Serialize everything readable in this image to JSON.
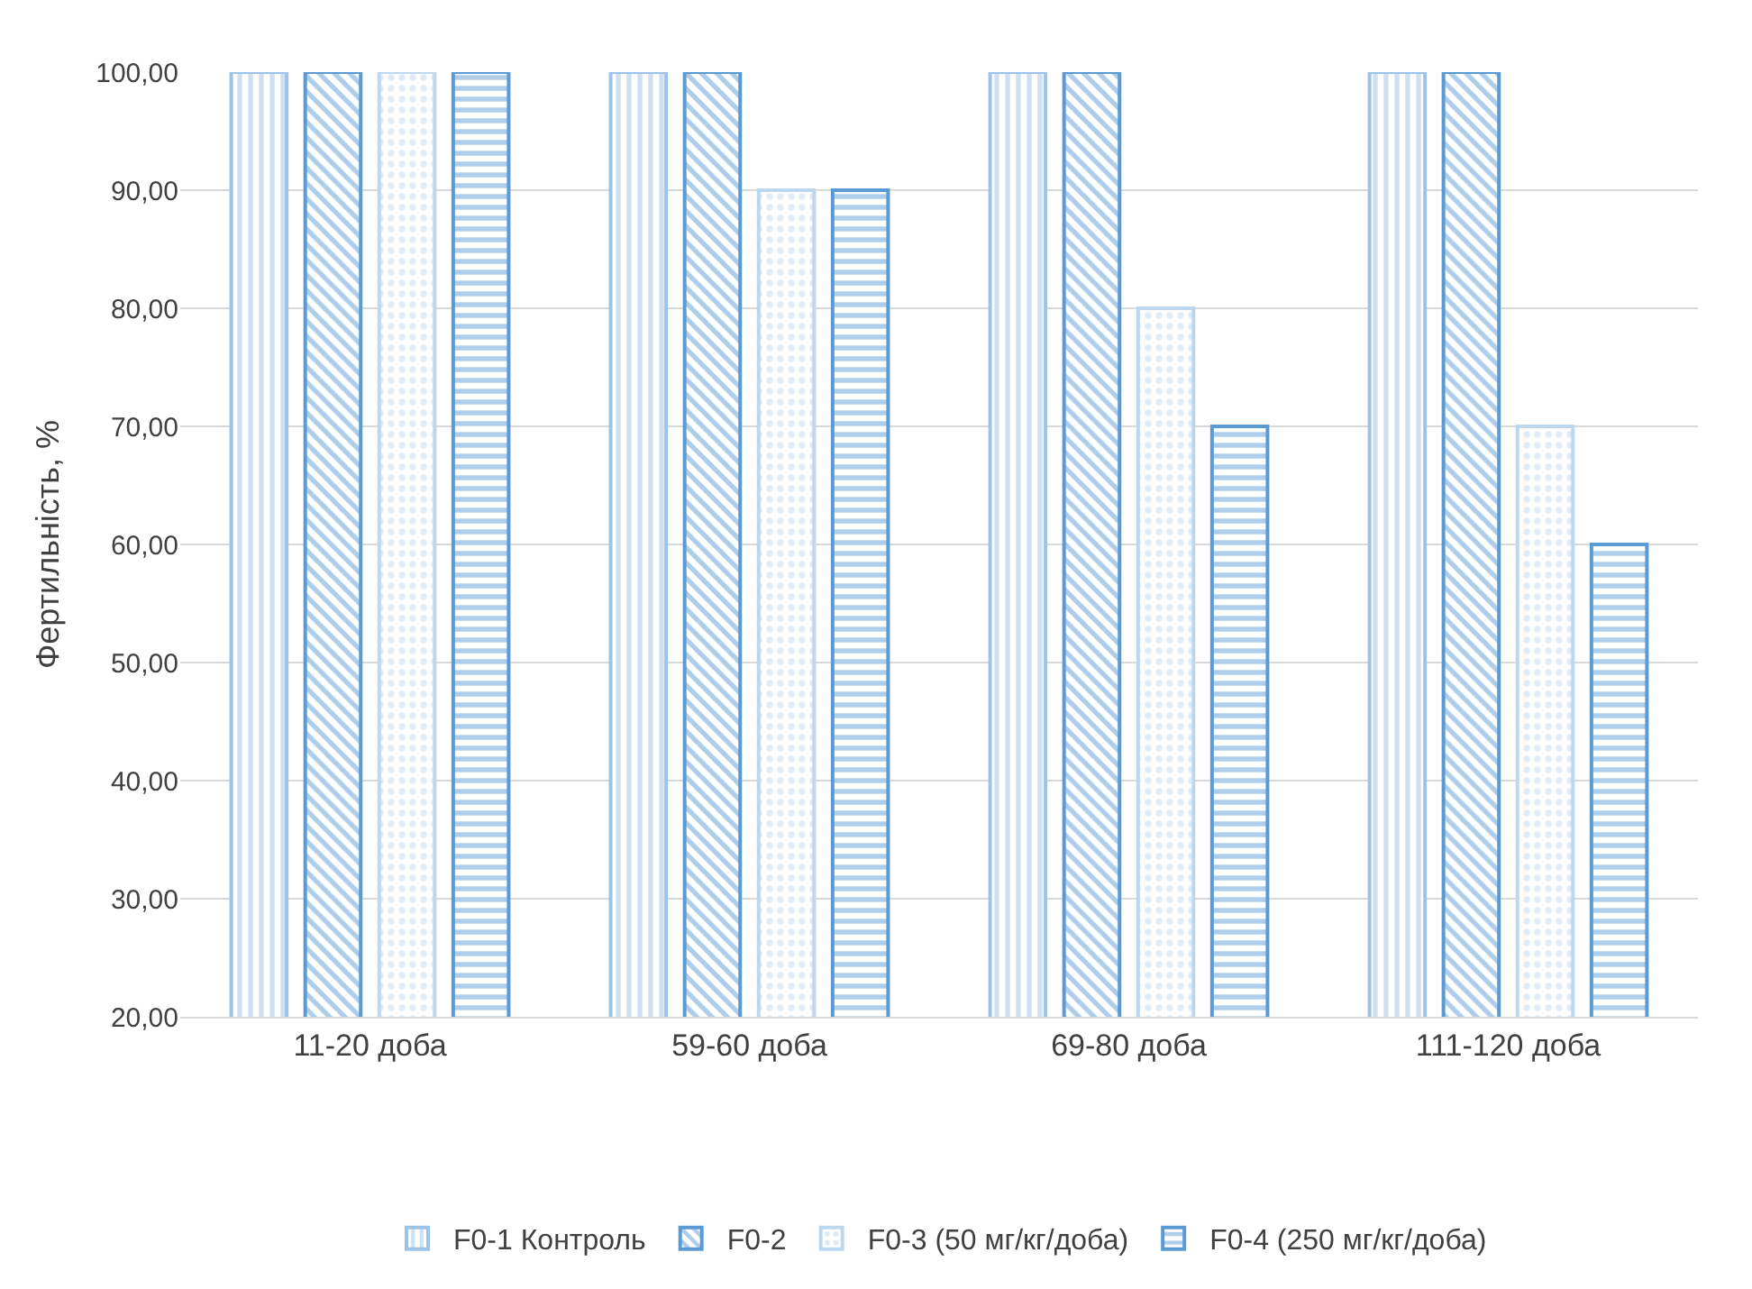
{
  "chart_data": {
    "type": "bar",
    "ylabel": "Фертильність, %",
    "categories": [
      "11-20 доба",
      "59-60 доба",
      "69-80 доба",
      "111-120 доба"
    ],
    "series": [
      {
        "name": "F0-1 Контроль",
        "color": "#9dc3e6",
        "values": [
          100,
          100,
          100,
          100
        ]
      },
      {
        "name": "F0-2",
        "color": "#5b9bd5",
        "values": [
          100,
          100,
          100,
          100
        ]
      },
      {
        "name": "F0-3 (50 мг/кг/доба)",
        "color": "#bdd7ee",
        "values": [
          100,
          90,
          80,
          70
        ]
      },
      {
        "name": "F0-4 (250 мг/кг/доба)",
        "color": "#5b9bd5",
        "values": [
          100,
          90,
          70,
          60
        ]
      }
    ],
    "ylim": [
      20,
      100
    ],
    "yticks": [
      {
        "value": 20,
        "label": "20,00"
      },
      {
        "value": 30,
        "label": "30,00"
      },
      {
        "value": 40,
        "label": "40,00"
      },
      {
        "value": 50,
        "label": "50,00"
      },
      {
        "value": 60,
        "label": "60,00"
      },
      {
        "value": 70,
        "label": "70,00"
      },
      {
        "value": 80,
        "label": "80,00"
      },
      {
        "value": 90,
        "label": "90,00"
      },
      {
        "value": 100,
        "label": "100,00"
      }
    ],
    "grid": "y",
    "legend": "bottom"
  }
}
